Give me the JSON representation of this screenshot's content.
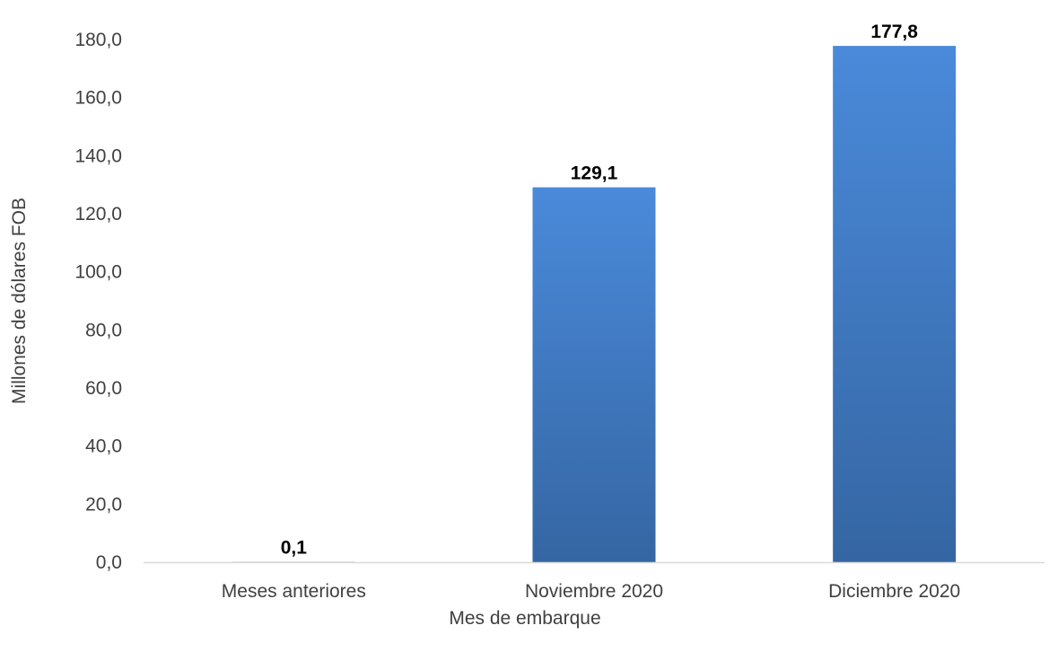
{
  "chart_data": {
    "type": "bar",
    "categories": [
      "Meses anteriores",
      "Noviembre 2020",
      "Diciembre 2020"
    ],
    "values": [
      0.1,
      129.1,
      177.8
    ],
    "data_labels": [
      "0,1",
      "129,1",
      "177,8"
    ],
    "title": "",
    "xlabel": "Mes de embarque",
    "ylabel": "Millones de dólares FOB",
    "ylim": [
      0,
      180
    ],
    "yticks": [
      0,
      20,
      40,
      60,
      80,
      100,
      120,
      140,
      160,
      180
    ],
    "ytick_labels": [
      "0,0",
      "20,0",
      "40,0",
      "60,0",
      "80,0",
      "100,0",
      "120,0",
      "140,0",
      "160,0",
      "180,0"
    ],
    "grid": false,
    "legend": "none",
    "colors": {
      "bar_top": "#4a8ada",
      "bar_bottom": "#3566a3",
      "axis_line": "#d9d9d9",
      "text": "#404040",
      "data_label": "#000000"
    }
  }
}
